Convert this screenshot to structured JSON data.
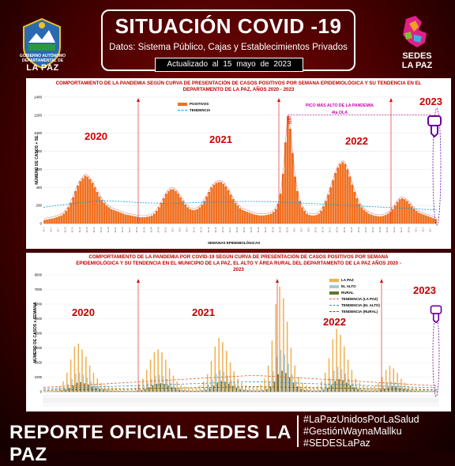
{
  "header": {
    "title": "SITUACIÓN COVID -19",
    "subtitle": "Datos: Sistema Público, Cajas y Establecimientos Privados",
    "updated": "Actualizado al 15 mayo de 2023",
    "gov_text": "GOBIERNO AUTÓNOMO DEPARTAMENTAL DE",
    "gov_name": "LA PAZ",
    "sedes_logo_text": "SEDES LA PAZ"
  },
  "colors": {
    "accent": "#c00000",
    "bar": "#f07020",
    "trend": "#00a0e0",
    "background": "#6a0000"
  },
  "chart_data": [
    {
      "type": "bar",
      "title": "COMPORTAMIENTO DE LA PANDEMIA SEGÚN CURVA DE PRESENTACIÓN DE CASOS POSITIVOS POR SEMANA EPIDEMIOLÓGICA Y SU TENDENCIA EN EL DEPARTAMENTO DE LA PAZ, AÑOS 2020 - 2023",
      "xlabel": "SEMANAS EPIDEMIOLÓGICAS",
      "ylabel": "NÚMERO DE CASOS + SE.",
      "yticks": [
        "0",
        "200",
        "400",
        "600",
        "800",
        "1000",
        "1200",
        "1400"
      ],
      "ylim": [
        0,
        1400
      ],
      "series": [
        {
          "name": "POSITIVOS",
          "values": [
            40,
            45,
            50,
            55,
            60,
            70,
            80,
            90,
            110,
            140,
            180,
            230,
            290,
            360,
            420,
            470,
            500,
            530,
            520,
            490,
            450,
            400,
            350,
            300,
            260,
            230,
            200,
            180,
            160,
            150,
            140,
            130,
            120,
            110,
            100,
            95,
            90,
            85,
            80,
            75,
            70,
            70,
            70,
            75,
            80,
            90,
            110,
            140,
            180,
            230,
            280,
            330,
            360,
            380,
            380,
            360,
            330,
            290,
            250,
            210,
            180,
            160,
            150,
            150,
            160,
            180,
            210,
            250,
            300,
            350,
            400,
            430,
            450,
            460,
            460,
            440,
            410,
            370,
            320,
            270,
            230,
            200,
            170,
            150,
            140,
            130,
            120,
            110,
            100,
            95,
            90,
            90,
            90,
            95,
            100,
            110,
            130,
            160,
            220,
            330,
            550,
            900,
            1187,
            1050,
            780,
            520,
            360,
            250,
            180,
            140,
            110,
            95,
            90,
            90,
            95,
            110,
            140,
            190,
            250,
            320,
            400,
            480,
            560,
            620,
            660,
            680,
            660,
            600,
            520,
            430,
            350,
            280,
            220,
            180,
            150,
            130,
            110,
            100,
            90,
            85,
            80,
            80,
            85,
            95,
            110,
            130,
            160,
            200,
            240,
            270,
            280,
            270,
            250,
            220,
            190,
            160,
            140,
            120,
            110,
            100,
            90,
            80,
            70,
            60,
            50
          ]
        },
        {
          "name": "TENDENCIA",
          "values": [
            180,
            190,
            200,
            210,
            220,
            230,
            240,
            245,
            250,
            250,
            248,
            245,
            240,
            235,
            230,
            228,
            226,
            225,
            225,
            226,
            228,
            230,
            232,
            234,
            236,
            238,
            240,
            242,
            244,
            245,
            245,
            244,
            242,
            240,
            237,
            234,
            230,
            226,
            222,
            218,
            214,
            210,
            206,
            202,
            198,
            194,
            190,
            186,
            182,
            178,
            174,
            170,
            166,
            162,
            158,
            154,
            150
          ]
        }
      ],
      "annotations": {
        "peak_value": "1187",
        "peak_label": "PICO MÁS ALTO DE LA PANDEMIA",
        "peak_sublabel": "4ta OLA",
        "years": [
          "2020",
          "2021",
          "2022",
          "2023"
        ]
      }
    },
    {
      "type": "bar",
      "title": "COMPORTAMIENTO DE LA PANDEMIA POR COVID-19 SEGÚN CURVA DE PRESENTACIÓN DE CASOS POSITIVOS POR SEMANA EPIDEMIOLÓGICA Y SU TENDENCIA EN EL MUNICIPIO DE LA PAZ, EL ALTO Y ÁREA RURAL DEL DEPARTAMENTO DE LA PAZ AÑOS 2020 - 2023",
      "ylabel": "NÚMERO DE CASOS x SEMANA",
      "yticks": [
        "0",
        "1000",
        "2000",
        "3000",
        "4000",
        "5000",
        "6000",
        "7000",
        "8000"
      ],
      "ylim": [
        0,
        8000
      ],
      "series": [
        {
          "name": "LA PAZ",
          "values": [
            50,
            80,
            120,
            200,
            350,
            700,
            1300,
            2200,
            3100,
            3300,
            2900,
            2400,
            1800,
            1300,
            900,
            600,
            450,
            350,
            300,
            260,
            230,
            210,
            200,
            220,
            280,
            500,
            900,
            1500,
            2200,
            2700,
            2900,
            2700,
            2200,
            1600,
            1100,
            700,
            450,
            350,
            300,
            280,
            300,
            400,
            700,
            1200,
            2100,
            3100,
            3700,
            3400,
            2800,
            2000,
            1400,
            900,
            600,
            450,
            380,
            350,
            380,
            500,
            900,
            1800,
            3500,
            6000,
            7200,
            6400,
            4800,
            3000,
            1800,
            1000,
            600,
            420,
            350,
            330,
            400,
            700,
            1300,
            2300,
            3600,
            4300,
            3900,
            3100,
            2200,
            1500,
            900,
            600,
            450,
            380,
            350,
            400,
            600,
            1000,
            1500,
            1800,
            1600,
            1300,
            900,
            600,
            400,
            300,
            250,
            220,
            200,
            180,
            160,
            140
          ]
        },
        {
          "name": "EL ALTO",
          "values": [
            20,
            30,
            50,
            80,
            140,
            280,
            520,
            880,
            1240,
            1320,
            1160,
            960,
            720,
            520,
            360,
            240,
            180,
            140,
            120,
            104,
            92,
            84,
            80,
            88,
            112,
            200,
            360,
            600,
            880,
            1080,
            1160,
            1080,
            880,
            640,
            440,
            280,
            180,
            140,
            120,
            112,
            120,
            160,
            280,
            480,
            840,
            1240,
            1480,
            1360,
            1120,
            800,
            560,
            360,
            240,
            180,
            152,
            140,
            152,
            200,
            360,
            720,
            1400,
            2400,
            2880,
            2560,
            1920,
            1200,
            720,
            400,
            240,
            168,
            140,
            132,
            160,
            280,
            520,
            920,
            1440,
            1720,
            1560,
            1240,
            880,
            600,
            360,
            240,
            180,
            152,
            140,
            160,
            240,
            400,
            600,
            720,
            640,
            520,
            360,
            240,
            160,
            120,
            100,
            88,
            80,
            72,
            64,
            56
          ]
        },
        {
          "name": "RURAL",
          "values": [
            10,
            15,
            25,
            40,
            70,
            140,
            260,
            440,
            620,
            660,
            580,
            480,
            360,
            260,
            180,
            120,
            90,
            70,
            60,
            52,
            46,
            42,
            40,
            44,
            56,
            100,
            180,
            300,
            440,
            540,
            580,
            540,
            440,
            320,
            220,
            140,
            90,
            70,
            60,
            56,
            60,
            80,
            140,
            240,
            420,
            620,
            740,
            680,
            560,
            400,
            280,
            180,
            120,
            90,
            76,
            70,
            76,
            100,
            180,
            360,
            700,
            1200,
            1440,
            1280,
            960,
            600,
            360,
            200,
            120,
            84,
            70,
            66,
            80,
            140,
            260,
            460,
            720,
            860,
            780,
            620,
            440,
            300,
            180,
            120,
            90,
            76,
            70,
            80,
            120,
            200,
            300,
            360,
            320,
            260,
            180,
            120,
            80,
            60,
            50,
            44,
            40,
            36,
            32,
            28
          ]
        },
        {
          "name": "TENDENCIA (LA PAZ)",
          "values": [
            300,
            350,
            400,
            450,
            500,
            550,
            600,
            650,
            700,
            750,
            800,
            850,
            900,
            950,
            1000,
            1050,
            1100,
            1100,
            1050,
            1000,
            950,
            900,
            850,
            800,
            750,
            700,
            650,
            600,
            550,
            500,
            450,
            400
          ]
        },
        {
          "name": "TENDENCIA (EL ALTO)",
          "values": [
            200,
            230,
            260,
            290,
            320,
            350,
            380,
            410,
            440,
            470,
            500,
            530,
            560,
            590,
            620,
            650,
            680,
            680,
            650,
            620,
            590,
            560,
            530,
            500,
            470,
            440,
            410,
            380,
            350,
            320,
            290,
            260
          ]
        },
        {
          "name": "TENDENCIA (RURAL)",
          "values": [
            100,
            115,
            130,
            145,
            160,
            175,
            190,
            205,
            220,
            235,
            250,
            265,
            280,
            295,
            310,
            325,
            340,
            340,
            325,
            310,
            295,
            280,
            265,
            250,
            235,
            220,
            205,
            190,
            175,
            160,
            145,
            130
          ]
        }
      ],
      "annotations": {
        "years": [
          "2020",
          "2021",
          "2022",
          "2023"
        ]
      }
    }
  ],
  "footer": {
    "report": "REPORTE OFICIAL SEDES LA PAZ",
    "hashtags": [
      "#LaPazUnidosPorLaSalud",
      "#GestiónWaynaMallku",
      "#SEDESLaPaz"
    ]
  }
}
